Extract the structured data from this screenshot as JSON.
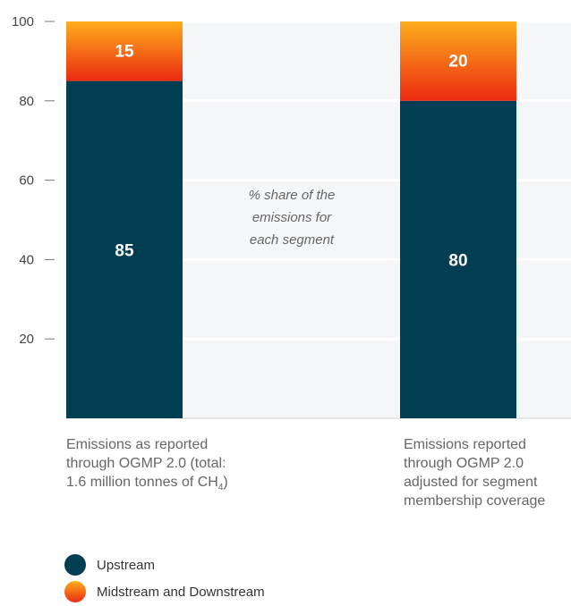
{
  "chart_data": {
    "type": "bar",
    "stacked": true,
    "y_range": [
      0,
      100
    ],
    "y_ticks": [
      "100",
      "80",
      "60",
      "40",
      "20"
    ],
    "grid": true,
    "categories": [
      "Emissions as reported through OGMP 2.0 (total: 1.6 million tonnes of CH4)",
      "Emissions reported through OGMP 2.0 adjusted for segment membership coverage"
    ],
    "series": [
      {
        "name": "Upstream",
        "values": [
          85,
          80
        ],
        "color": "#023e52"
      },
      {
        "name": "Midstream and Downstream",
        "values": [
          15,
          20
        ],
        "color": "#f4621a"
      }
    ],
    "segment_labels": [
      [
        "85",
        "15"
      ],
      [
        "80",
        "20"
      ]
    ],
    "annotation": "% share of the emissions for each segment",
    "legend_position": "bottom-left"
  },
  "labels": {
    "category_1": {
      "line1": "Emissions as reported",
      "line2": "through OGMP 2.0 (total:",
      "line3": "1.6 million tonnes of CH",
      "subscript": "4",
      "suffix": ")"
    },
    "category_2": {
      "line1": "Emissions reported",
      "line2": "through OGMP 2.0",
      "line3": "adjusted for segment",
      "line4": "membership coverage"
    },
    "annotation_lines": [
      "% share of the",
      "emissions for",
      "each segment"
    ]
  },
  "legend": [
    {
      "label": "Upstream",
      "color": "#023e52"
    },
    {
      "label": "Midstream and Downstream",
      "color": "#f4621a"
    }
  ]
}
